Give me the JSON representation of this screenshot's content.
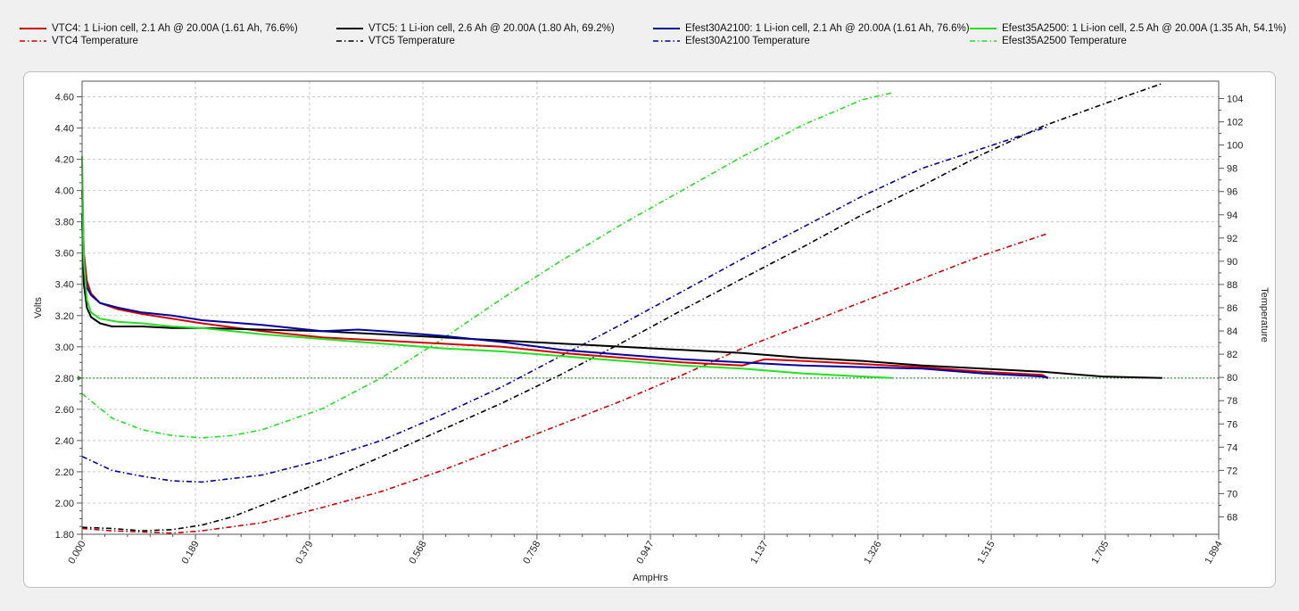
{
  "legend": [
    {
      "label": "VTC4: 1 Li-ion cell, 2.1 Ah @ 20.00A (1.61 Ah, 76.6%)",
      "color": "#d00000",
      "style": "solid"
    },
    {
      "label": "VTC4 Temperature",
      "color": "#d00000",
      "style": "dashdot"
    },
    {
      "label": "VTC5: 1 Li-ion cell, 2.6 Ah @ 20.00A (1.80 Ah, 69.2%)",
      "color": "#000000",
      "style": "solid"
    },
    {
      "label": "VTC5 Temperature",
      "color": "#000000",
      "style": "dashdot"
    },
    {
      "label": "Efest30A2100: 1 Li-ion cell, 2.1 Ah @ 20.00A (1.61 Ah, 76.6%)",
      "color": "#0000a0",
      "style": "solid"
    },
    {
      "label": "Efest30A2100 Temperature",
      "color": "#0000a0",
      "style": "dashdot"
    },
    {
      "label": "Efest35A2500: 1 Li-ion cell, 2.5 Ah @ 20.00A (1.35 Ah, 54.1%)",
      "color": "#22e022",
      "style": "solid"
    },
    {
      "label": "Efest35A2500 Temperature",
      "color": "#22e022",
      "style": "dashdot"
    }
  ],
  "chart_data": {
    "type": "line",
    "xlabel": "AmpHrs",
    "ylabel": "Volts",
    "y2label": "Temperature",
    "xlim": [
      0,
      1.894
    ],
    "ylim": [
      1.8,
      4.7
    ],
    "y2lim": [
      66.5,
      105.5
    ],
    "x_ticks": [
      "0.000",
      "0.189",
      "0.379",
      "0.568",
      "0.758",
      "0.947",
      "1.137",
      "1.326",
      "1.515",
      "1.705",
      "1.894"
    ],
    "y_ticks": [
      "1.80",
      "2.00",
      "2.20",
      "2.40",
      "2.60",
      "2.80",
      "3.00",
      "3.20",
      "3.40",
      "3.60",
      "3.80",
      "4.00",
      "4.20",
      "4.40",
      "4.60"
    ],
    "y2_ticks": [
      "68",
      "70",
      "72",
      "74",
      "76",
      "78",
      "80",
      "82",
      "84",
      "86",
      "88",
      "90",
      "92",
      "94",
      "96",
      "98",
      "100",
      "102",
      "104"
    ],
    "cutoff_voltage": 2.8,
    "grid": true,
    "legend_position": "top",
    "series": [
      {
        "name": "VTC4",
        "axis": "left",
        "color": "#d00000",
        "style": "solid",
        "x": [
          0,
          0.003,
          0.008,
          0.015,
          0.03,
          0.06,
          0.1,
          0.15,
          0.2,
          0.3,
          0.4,
          0.5,
          0.6,
          0.7,
          0.8,
          0.9,
          1.0,
          1.1,
          1.137,
          1.2,
          1.3,
          1.4,
          1.5,
          1.6,
          1.61
        ],
        "y": [
          4.0,
          3.6,
          3.42,
          3.34,
          3.28,
          3.24,
          3.21,
          3.18,
          3.15,
          3.1,
          3.06,
          3.04,
          3.02,
          3.0,
          2.96,
          2.93,
          2.9,
          2.88,
          2.92,
          2.91,
          2.89,
          2.87,
          2.84,
          2.82,
          2.8
        ]
      },
      {
        "name": "VTC5",
        "axis": "left",
        "color": "#000000",
        "style": "solid",
        "x": [
          0,
          0.003,
          0.008,
          0.015,
          0.03,
          0.05,
          0.1,
          0.15,
          0.2,
          0.3,
          0.4,
          0.5,
          0.6,
          0.7,
          0.8,
          0.9,
          1.0,
          1.1,
          1.2,
          1.3,
          1.4,
          1.5,
          1.6,
          1.7,
          1.8
        ],
        "y": [
          3.8,
          3.4,
          3.25,
          3.19,
          3.15,
          3.13,
          3.13,
          3.12,
          3.12,
          3.11,
          3.1,
          3.08,
          3.06,
          3.04,
          3.02,
          3.0,
          2.98,
          2.96,
          2.93,
          2.91,
          2.88,
          2.86,
          2.84,
          2.81,
          2.8
        ]
      },
      {
        "name": "Efest30A2100",
        "axis": "left",
        "color": "#0000a0",
        "style": "solid",
        "x": [
          0,
          0.003,
          0.008,
          0.015,
          0.03,
          0.06,
          0.1,
          0.15,
          0.2,
          0.3,
          0.4,
          0.46,
          0.5,
          0.6,
          0.7,
          0.8,
          0.9,
          1.0,
          1.1,
          1.2,
          1.3,
          1.4,
          1.5,
          1.6,
          1.61
        ],
        "y": [
          3.85,
          3.5,
          3.38,
          3.33,
          3.28,
          3.25,
          3.22,
          3.2,
          3.17,
          3.14,
          3.1,
          3.11,
          3.1,
          3.07,
          3.03,
          2.98,
          2.95,
          2.92,
          2.9,
          2.88,
          2.87,
          2.86,
          2.83,
          2.81,
          2.8
        ]
      },
      {
        "name": "Efest35A2500",
        "axis": "left",
        "color": "#22e022",
        "style": "solid",
        "x": [
          0,
          0.003,
          0.008,
          0.015,
          0.03,
          0.06,
          0.1,
          0.15,
          0.2,
          0.3,
          0.4,
          0.5,
          0.6,
          0.7,
          0.8,
          0.9,
          1.0,
          1.1,
          1.2,
          1.3,
          1.35
        ],
        "y": [
          4.22,
          3.55,
          3.3,
          3.22,
          3.18,
          3.16,
          3.15,
          3.13,
          3.12,
          3.08,
          3.05,
          3.02,
          2.99,
          2.97,
          2.94,
          2.91,
          2.88,
          2.86,
          2.83,
          2.81,
          2.8
        ]
      },
      {
        "name": "VTC4 Temperature",
        "axis": "right",
        "color": "#d00000",
        "style": "dashdot",
        "x": [
          0,
          0.05,
          0.1,
          0.15,
          0.2,
          0.3,
          0.4,
          0.5,
          0.6,
          0.7,
          0.8,
          0.9,
          1.0,
          1.1,
          1.2,
          1.3,
          1.4,
          1.5,
          1.61
        ],
        "y": [
          67,
          66.8,
          66.7,
          66.6,
          66.8,
          67.5,
          68.8,
          70.2,
          72.0,
          74.0,
          76.0,
          78.0,
          80.2,
          82.5,
          84.5,
          86.5,
          88.5,
          90.5,
          92.4
        ]
      },
      {
        "name": "VTC5 Temperature",
        "axis": "right",
        "color": "#000000",
        "style": "dashdot",
        "x": [
          0,
          0.05,
          0.1,
          0.15,
          0.2,
          0.25,
          0.3,
          0.4,
          0.5,
          0.6,
          0.7,
          0.8,
          0.9,
          1.0,
          1.1,
          1.2,
          1.3,
          1.4,
          1.5,
          1.6,
          1.7,
          1.8
        ],
        "y": [
          67.1,
          67.0,
          66.8,
          66.9,
          67.3,
          68.0,
          69.0,
          71.0,
          73.2,
          75.5,
          77.8,
          80.3,
          83.0,
          85.8,
          88.5,
          91.2,
          94.0,
          96.5,
          99.2,
          101.6,
          103.5,
          105.3
        ]
      },
      {
        "name": "Efest30A2100 Temperature",
        "axis": "right",
        "color": "#0000a0",
        "style": "dashdot",
        "x": [
          0,
          0.05,
          0.1,
          0.15,
          0.2,
          0.3,
          0.4,
          0.5,
          0.6,
          0.7,
          0.8,
          0.9,
          1.0,
          1.1,
          1.2,
          1.3,
          1.4,
          1.5,
          1.61
        ],
        "y": [
          73.2,
          72.0,
          71.5,
          71.1,
          71.0,
          71.6,
          72.9,
          74.6,
          76.8,
          79.2,
          81.9,
          84.6,
          87.4,
          90.2,
          92.9,
          95.6,
          98.0,
          99.7,
          101.6
        ]
      },
      {
        "name": "Efest35A2500 Temperature",
        "axis": "right",
        "color": "#22e022",
        "style": "dashdot",
        "x": [
          0,
          0.05,
          0.1,
          0.15,
          0.2,
          0.25,
          0.3,
          0.4,
          0.5,
          0.6,
          0.7,
          0.8,
          0.9,
          1.0,
          1.1,
          1.2,
          1.3,
          1.35
        ],
        "y": [
          78.6,
          76.5,
          75.5,
          75.0,
          74.8,
          75.0,
          75.5,
          77.3,
          80.0,
          83.3,
          86.8,
          90.1,
          93.2,
          96.1,
          99.0,
          101.7,
          103.9,
          104.5
        ]
      }
    ]
  }
}
